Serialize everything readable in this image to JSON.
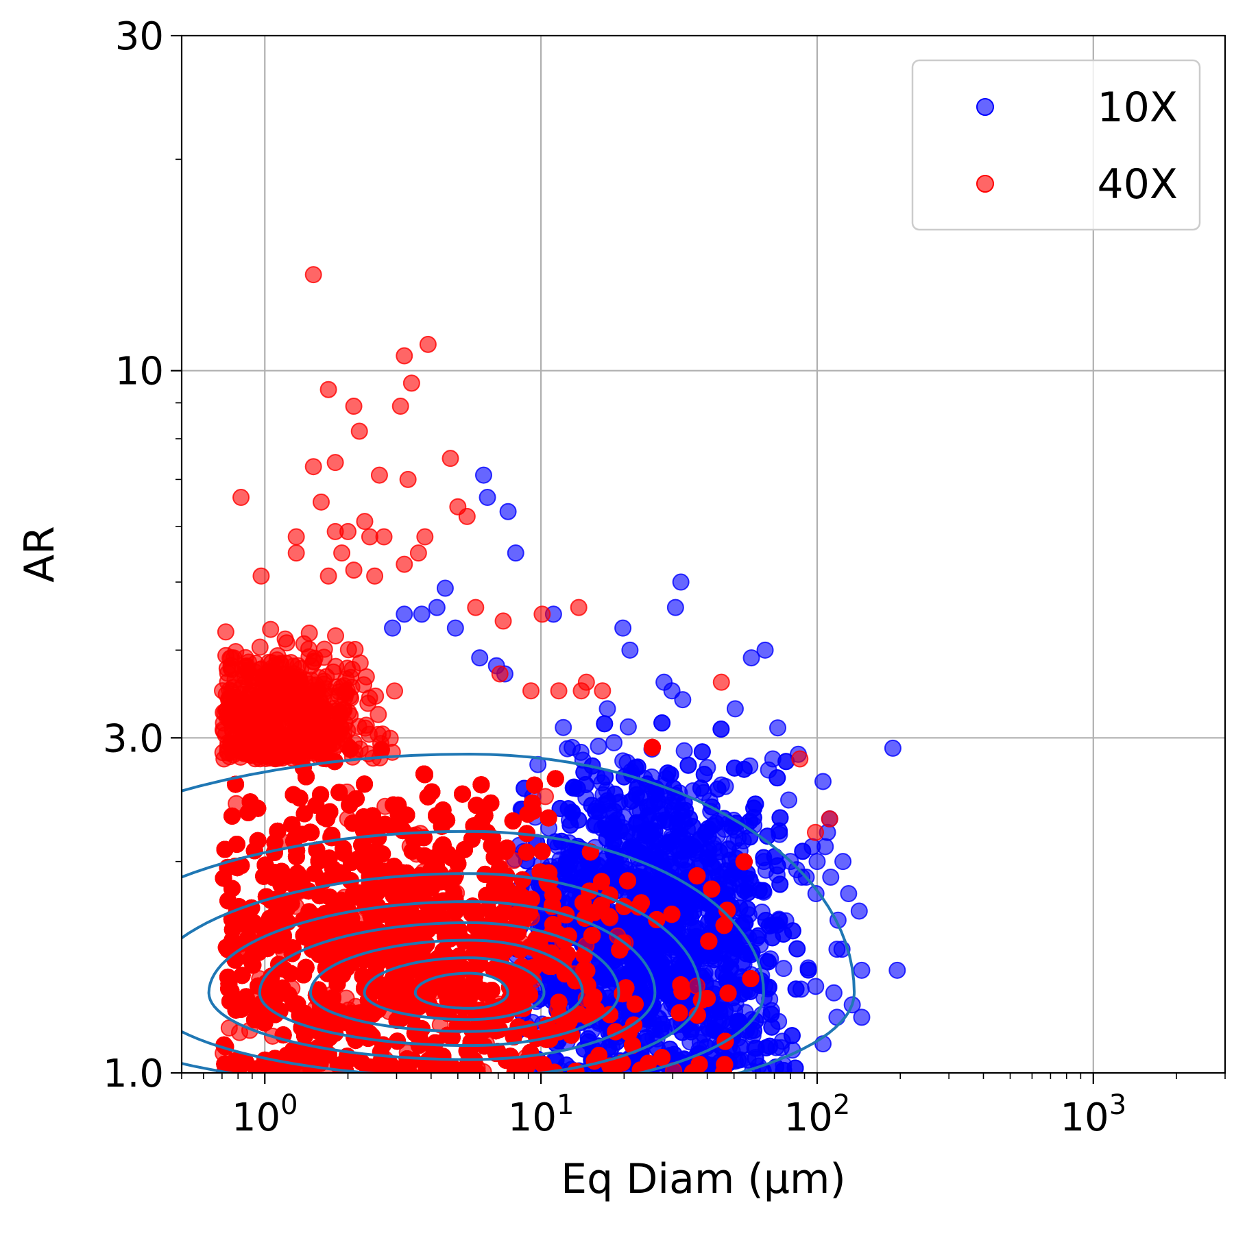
{
  "chart_data": {
    "type": "scatter",
    "title": "",
    "xlabel": "Eq Diam (µm)",
    "ylabel": "AR",
    "x_scale": "log",
    "y_scale": "log",
    "xlim": [
      0.5,
      3000
    ],
    "ylim": [
      1.0,
      30
    ],
    "grid": true,
    "x_ticks": [
      {
        "value": 1,
        "base": "10",
        "exp": "0"
      },
      {
        "value": 10,
        "base": "10",
        "exp": "1"
      },
      {
        "value": 100,
        "base": "10",
        "exp": "2"
      },
      {
        "value": 1000,
        "base": "10",
        "exp": "3"
      }
    ],
    "y_ticks": [
      {
        "value": 1.0,
        "label": "1.0"
      },
      {
        "value": 3.0,
        "label": "3.0"
      },
      {
        "value": 10,
        "label": "10"
      },
      {
        "value": 30,
        "label": "30"
      }
    ],
    "legend": {
      "position": "upper right",
      "entries": [
        {
          "label": "10X",
          "color": "#0000ff"
        },
        {
          "label": "40X",
          "color": "#ff0000"
        }
      ]
    },
    "series": [
      {
        "name": "10X",
        "color": "#0000ff",
        "outliers": [
          [
            6.2,
            7.1
          ],
          [
            6.4,
            6.6
          ],
          [
            7.6,
            6.3
          ],
          [
            8.1,
            5.5
          ],
          [
            4.5,
            4.9
          ],
          [
            4.2,
            4.6
          ],
          [
            3.2,
            4.5
          ],
          [
            3.7,
            4.5
          ],
          [
            2.9,
            4.3
          ],
          [
            4.9,
            4.3
          ],
          [
            11.1,
            4.5
          ],
          [
            30.7,
            4.6
          ],
          [
            32.1,
            5.0
          ],
          [
            19.8,
            4.3
          ],
          [
            21.0,
            4.0
          ],
          [
            6.0,
            3.9
          ],
          [
            6.9,
            3.8
          ],
          [
            7.4,
            3.7
          ],
          [
            57.8,
            3.9
          ],
          [
            64.8,
            4.0
          ],
          [
            27.9,
            3.6
          ],
          [
            29.8,
            3.5
          ],
          [
            32.6,
            3.4
          ],
          [
            17.4,
            3.3
          ],
          [
            50.5,
            3.3
          ],
          [
            72.0,
            3.1
          ],
          [
            69.1,
            2.8
          ],
          [
            66.7,
            2.7
          ],
          [
            105,
            2.6
          ],
          [
            109,
            2.2
          ],
          [
            111,
            2.3
          ],
          [
            107,
            2.1
          ],
          [
            124,
            2.0
          ],
          [
            130,
            1.8
          ],
          [
            142,
            1.7
          ],
          [
            188,
            2.9
          ],
          [
            195,
            1.4
          ],
          [
            145,
            1.4
          ],
          [
            118,
            1.5
          ],
          [
            112,
            1.9
          ],
          [
            100,
            2.0
          ],
          [
            96,
            2.1
          ],
          [
            119,
            1.65
          ],
          [
            118,
            1.2
          ],
          [
            145,
            1.2
          ],
          [
            105,
            1.1
          ],
          [
            134,
            1.25
          ],
          [
            99,
            1.8
          ],
          [
            88,
            1.9
          ],
          [
            80,
            2.0
          ],
          [
            123,
            1.5
          ],
          [
            115,
            1.3
          ]
        ],
        "clouds": [
          {
            "x_range": [
              8,
              100
            ],
            "y_range": [
              1.0,
              3.2
            ],
            "x_peak": 25,
            "y_peak": 1.6,
            "count": 2200
          }
        ]
      },
      {
        "name": "40X",
        "color": "#ff0000",
        "outliers": [
          [
            1.5,
            13.7
          ],
          [
            3.9,
            10.9
          ],
          [
            3.2,
            10.5
          ],
          [
            3.4,
            9.6
          ],
          [
            1.7,
            9.4
          ],
          [
            2.1,
            8.9
          ],
          [
            3.1,
            8.9
          ],
          [
            2.2,
            8.2
          ],
          [
            4.7,
            7.5
          ],
          [
            1.5,
            7.3
          ],
          [
            3.3,
            7.0
          ],
          [
            1.8,
            7.4
          ],
          [
            2.6,
            7.1
          ],
          [
            0.82,
            6.6
          ],
          [
            1.6,
            6.5
          ],
          [
            2.3,
            6.1
          ],
          [
            5.4,
            6.2
          ],
          [
            5.0,
            6.4
          ],
          [
            1.3,
            5.8
          ],
          [
            1.8,
            5.9
          ],
          [
            2.0,
            5.9
          ],
          [
            2.4,
            5.8
          ],
          [
            3.8,
            5.8
          ],
          [
            2.7,
            5.8
          ],
          [
            1.9,
            5.5
          ],
          [
            1.3,
            5.5
          ],
          [
            3.6,
            5.5
          ],
          [
            3.2,
            5.3
          ],
          [
            1.7,
            5.1
          ],
          [
            2.5,
            5.1
          ],
          [
            2.1,
            5.2
          ],
          [
            0.97,
            5.1
          ],
          [
            5.8,
            4.6
          ],
          [
            7.3,
            4.4
          ],
          [
            10.1,
            4.5
          ],
          [
            13.7,
            4.6
          ],
          [
            7.1,
            3.7
          ],
          [
            9.2,
            3.5
          ],
          [
            11.6,
            3.5
          ],
          [
            14.0,
            3.5
          ],
          [
            14.6,
            3.6
          ],
          [
            16.7,
            3.5
          ],
          [
            45.0,
            3.6
          ],
          [
            86.6,
            2.8
          ],
          [
            111,
            2.3
          ],
          [
            98.6,
            2.2
          ]
        ],
        "clouds": [
          {
            "x_range": [
              0.7,
              60
            ],
            "y_range": [
              1.0,
              3.0
            ],
            "x_peak": 3,
            "y_peak": 1.5,
            "count": 6500
          },
          {
            "x_range": [
              0.7,
              3.0
            ],
            "y_range": [
              2.8,
              4.6
            ],
            "x_peak": 1.1,
            "y_peak": 3.2,
            "count": 700
          }
        ]
      }
    ],
    "contours": {
      "color": "#1f77b4",
      "description": "density contour levels of the joint distribution"
    }
  }
}
